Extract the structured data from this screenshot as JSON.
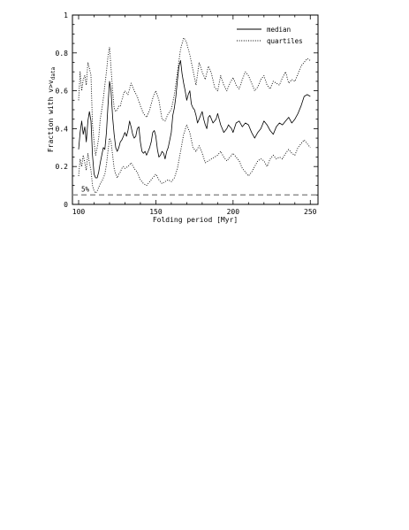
{
  "chart_data": {
    "type": "line",
    "xlabel": "Folding period [Myr]",
    "ylabel_prefix": "Fraction with ",
    "ylabel_sym": "v>v",
    "ylabel_sub": "data",
    "xlim": [
      96,
      255
    ],
    "ylim": [
      0,
      1
    ],
    "x_ticks": [
      100,
      150,
      200,
      250
    ],
    "y_ticks": [
      0,
      0.2,
      0.4,
      0.6,
      0.8,
      1
    ],
    "y_tick_labels": [
      "0",
      "0.2",
      "0.4",
      "0.6",
      "0.8",
      "1"
    ],
    "legend": {
      "position": "top-right",
      "entries": [
        "median",
        "quartiles"
      ]
    },
    "reference_line": {
      "y": 0.05,
      "label": "5%"
    },
    "series": [
      {
        "name": "median",
        "style": "solid",
        "x": [
          100,
          101,
          102,
          103,
          104,
          105,
          106,
          107,
          108,
          109,
          110,
          111,
          112,
          113,
          114,
          115,
          116,
          117,
          118,
          119,
          120,
          121,
          122,
          123,
          124,
          125,
          126,
          127,
          128,
          129,
          130,
          131,
          132,
          133,
          134,
          135,
          136,
          137,
          138,
          139,
          140,
          141,
          142,
          143,
          144,
          145,
          146,
          147,
          148,
          149,
          150,
          151,
          152,
          153,
          154,
          155,
          156,
          157,
          158,
          159,
          160,
          161,
          162,
          163,
          164,
          165,
          166,
          167,
          168,
          169,
          170,
          171,
          172,
          173,
          174,
          175,
          176,
          177,
          178,
          179,
          180,
          181,
          182,
          183,
          184,
          185,
          186,
          187,
          188,
          189,
          190,
          191,
          192,
          193,
          194,
          195,
          196,
          197,
          198,
          199,
          200,
          202,
          204,
          206,
          208,
          210,
          212,
          214,
          216,
          218,
          220,
          222,
          224,
          226,
          228,
          230,
          232,
          234,
          236,
          238,
          240,
          242,
          244,
          246,
          248,
          250
        ],
        "y": [
          0.29,
          0.38,
          0.44,
          0.37,
          0.41,
          0.33,
          0.44,
          0.49,
          0.44,
          0.26,
          0.16,
          0.14,
          0.14,
          0.17,
          0.22,
          0.26,
          0.3,
          0.29,
          0.38,
          0.52,
          0.65,
          0.6,
          0.46,
          0.37,
          0.3,
          0.28,
          0.3,
          0.33,
          0.34,
          0.36,
          0.38,
          0.36,
          0.39,
          0.44,
          0.41,
          0.37,
          0.35,
          0.36,
          0.4,
          0.41,
          0.33,
          0.28,
          0.27,
          0.28,
          0.26,
          0.28,
          0.3,
          0.33,
          0.38,
          0.39,
          0.36,
          0.29,
          0.25,
          0.26,
          0.28,
          0.27,
          0.24,
          0.28,
          0.3,
          0.34,
          0.38,
          0.47,
          0.51,
          0.57,
          0.66,
          0.73,
          0.76,
          0.69,
          0.64,
          0.6,
          0.55,
          0.58,
          0.6,
          0.53,
          0.51,
          0.5,
          0.47,
          0.43,
          0.45,
          0.47,
          0.49,
          0.45,
          0.42,
          0.4,
          0.46,
          0.47,
          0.45,
          0.43,
          0.44,
          0.45,
          0.48,
          0.45,
          0.42,
          0.4,
          0.38,
          0.39,
          0.4,
          0.42,
          0.41,
          0.4,
          0.38,
          0.43,
          0.44,
          0.41,
          0.43,
          0.42,
          0.38,
          0.35,
          0.38,
          0.4,
          0.44,
          0.42,
          0.39,
          0.37,
          0.41,
          0.43,
          0.42,
          0.44,
          0.46,
          0.43,
          0.45,
          0.48,
          0.52,
          0.57,
          0.58,
          0.57
        ]
      },
      {
        "name": "quartiles",
        "style": "dotted",
        "x": [
          100,
          101,
          102,
          103,
          104,
          105,
          106,
          107,
          108,
          109,
          110,
          111,
          112,
          113,
          114,
          115,
          116,
          117,
          118,
          119,
          120,
          121,
          122,
          123,
          124,
          125,
          126,
          127,
          128,
          129,
          130,
          132,
          134,
          136,
          138,
          140,
          142,
          144,
          146,
          148,
          150,
          152,
          154,
          156,
          158,
          160,
          162,
          164,
          166,
          168,
          169,
          170,
          172,
          174,
          176,
          178,
          180,
          182,
          184,
          186,
          188,
          190,
          192,
          194,
          196,
          198,
          200,
          202,
          204,
          206,
          208,
          210,
          212,
          214,
          216,
          218,
          220,
          222,
          224,
          226,
          228,
          230,
          232,
          234,
          236,
          238,
          240,
          242,
          244,
          246,
          248,
          250
        ],
        "y": [
          0.55,
          0.7,
          0.6,
          0.66,
          0.68,
          0.63,
          0.75,
          0.72,
          0.68,
          0.42,
          0.33,
          0.26,
          0.3,
          0.35,
          0.45,
          0.5,
          0.56,
          0.63,
          0.7,
          0.78,
          0.83,
          0.72,
          0.6,
          0.51,
          0.49,
          0.5,
          0.52,
          0.52,
          0.55,
          0.58,
          0.6,
          0.58,
          0.64,
          0.6,
          0.57,
          0.52,
          0.48,
          0.46,
          0.5,
          0.56,
          0.6,
          0.55,
          0.45,
          0.44,
          0.48,
          0.5,
          0.58,
          0.7,
          0.82,
          0.88,
          0.87,
          0.85,
          0.79,
          0.71,
          0.63,
          0.75,
          0.7,
          0.66,
          0.73,
          0.69,
          0.62,
          0.6,
          0.68,
          0.63,
          0.6,
          0.64,
          0.67,
          0.63,
          0.61,
          0.66,
          0.7,
          0.68,
          0.64,
          0.6,
          0.62,
          0.66,
          0.68,
          0.63,
          0.61,
          0.65,
          0.64,
          0.63,
          0.67,
          0.7,
          0.64,
          0.66,
          0.65,
          0.69,
          0.73,
          0.75,
          0.77,
          0.76
        ]
      },
      {
        "name": "quartiles",
        "style": "dotted",
        "x": [
          100,
          101,
          102,
          103,
          104,
          105,
          106,
          107,
          108,
          109,
          110,
          111,
          112,
          113,
          114,
          115,
          116,
          117,
          118,
          119,
          120,
          121,
          122,
          123,
          124,
          125,
          126,
          127,
          128,
          129,
          130,
          132,
          134,
          136,
          138,
          140,
          142,
          144,
          146,
          148,
          150,
          152,
          154,
          156,
          158,
          160,
          162,
          164,
          166,
          168,
          170,
          172,
          174,
          176,
          178,
          180,
          182,
          184,
          186,
          188,
          190,
          192,
          194,
          196,
          198,
          200,
          202,
          204,
          206,
          208,
          210,
          212,
          214,
          216,
          218,
          220,
          222,
          224,
          226,
          228,
          230,
          232,
          234,
          236,
          238,
          240,
          242,
          244,
          246,
          248,
          250
        ],
        "y": [
          0.15,
          0.24,
          0.2,
          0.26,
          0.22,
          0.18,
          0.27,
          0.22,
          0.18,
          0.1,
          0.07,
          0.06,
          0.07,
          0.09,
          0.11,
          0.12,
          0.14,
          0.16,
          0.21,
          0.28,
          0.35,
          0.33,
          0.26,
          0.19,
          0.16,
          0.14,
          0.16,
          0.17,
          0.19,
          0.2,
          0.19,
          0.2,
          0.22,
          0.19,
          0.17,
          0.13,
          0.11,
          0.1,
          0.12,
          0.14,
          0.16,
          0.13,
          0.11,
          0.12,
          0.13,
          0.12,
          0.14,
          0.19,
          0.28,
          0.37,
          0.42,
          0.38,
          0.3,
          0.28,
          0.31,
          0.27,
          0.22,
          0.23,
          0.24,
          0.25,
          0.26,
          0.28,
          0.25,
          0.23,
          0.25,
          0.27,
          0.25,
          0.23,
          0.19,
          0.17,
          0.15,
          0.17,
          0.2,
          0.23,
          0.24,
          0.23,
          0.2,
          0.24,
          0.26,
          0.24,
          0.25,
          0.24,
          0.27,
          0.29,
          0.27,
          0.26,
          0.3,
          0.32,
          0.34,
          0.32,
          0.3
        ]
      }
    ]
  }
}
